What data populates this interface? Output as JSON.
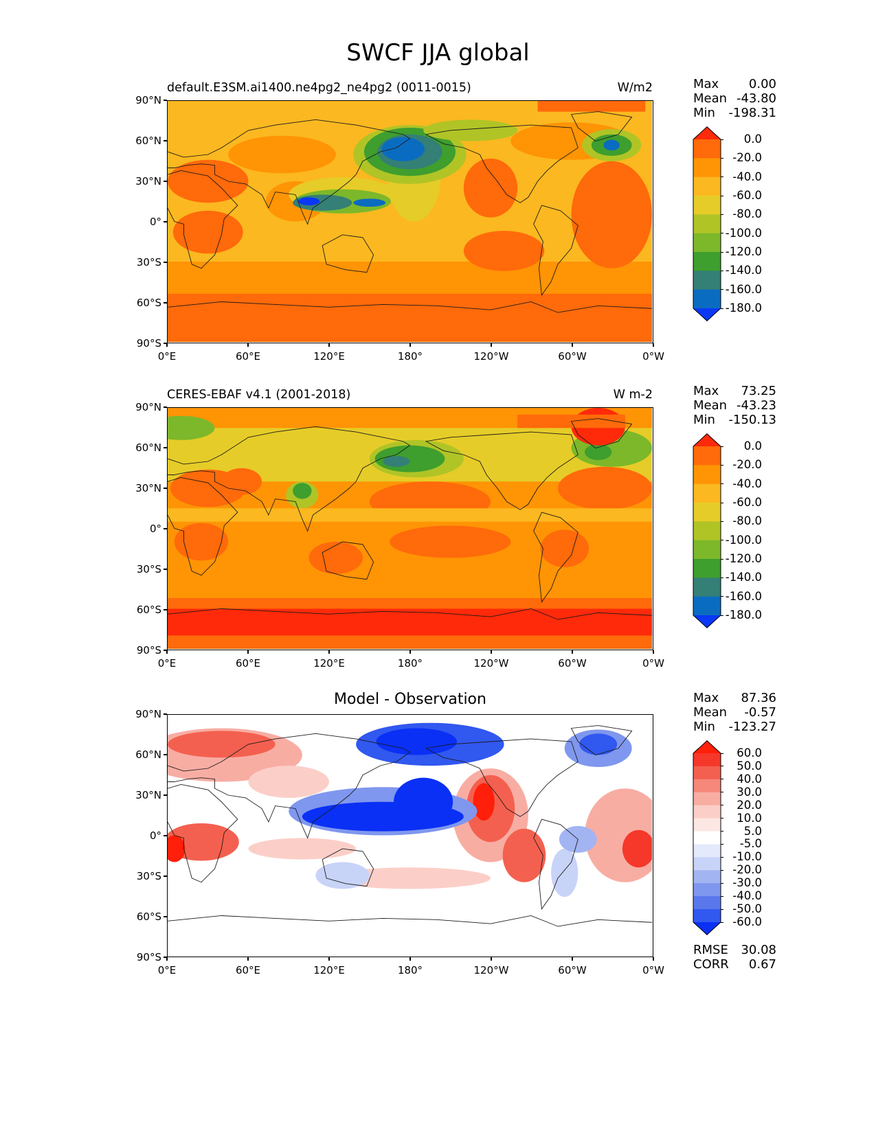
{
  "title": "SWCF JJA global",
  "axis_labels": {
    "lat": [
      "90°N",
      "60°N",
      "30°N",
      "0°",
      "30°S",
      "60°S",
      "90°S"
    ],
    "lon": [
      "0°E",
      "60°E",
      "120°E",
      "180°",
      "120°W",
      "60°W",
      "0°W"
    ]
  },
  "panels": [
    {
      "id": "model",
      "title_left": "default.E3SM.ai1400.ne4pg2_ne4pg2 (0011-0015)",
      "title_right": "W/m2",
      "title_center": "",
      "stats": [
        {
          "label": "Max",
          "value": "0.00"
        },
        {
          "label": "Mean",
          "value": "-43.80"
        },
        {
          "label": "Min",
          "value": "-198.31"
        }
      ],
      "colorbar": {
        "labels": [
          "0.0",
          "-20.0",
          "-40.0",
          "-60.0",
          "-80.0",
          "-100.0",
          "-120.0",
          "-140.0",
          "-160.0",
          "-180.0"
        ],
        "colors": [
          "#ff2a0a",
          "#ff6a0a",
          "#ff9405",
          "#fbb820",
          "#e6cc28",
          "#b0c426",
          "#7cb82a",
          "#3e9e2e",
          "#347f76",
          "#0a6cc0",
          "#0a38f5"
        ]
      },
      "extra_stats": []
    },
    {
      "id": "obs",
      "title_left": "CERES-EBAF v4.1 (2001-2018)",
      "title_right": "W m-2",
      "title_center": "",
      "stats": [
        {
          "label": "Max",
          "value": "73.25"
        },
        {
          "label": "Mean",
          "value": "-43.23"
        },
        {
          "label": "Min",
          "value": "-150.13"
        }
      ],
      "colorbar": {
        "labels": [
          "0.0",
          "-20.0",
          "-40.0",
          "-60.0",
          "-80.0",
          "-100.0",
          "-120.0",
          "-140.0",
          "-160.0",
          "-180.0"
        ],
        "colors": [
          "#ff2a0a",
          "#ff6a0a",
          "#ff9405",
          "#fbb820",
          "#e6cc28",
          "#b0c426",
          "#7cb82a",
          "#3e9e2e",
          "#347f76",
          "#0a6cc0",
          "#0a38f5"
        ]
      },
      "extra_stats": []
    },
    {
      "id": "diff",
      "title_left": "",
      "title_right": "",
      "title_center": "Model - Observation",
      "stats": [
        {
          "label": "Max",
          "value": "87.36"
        },
        {
          "label": "Mean",
          "value": "-0.57"
        },
        {
          "label": "Min",
          "value": "-123.27"
        }
      ],
      "colorbar": {
        "labels": [
          "60.0",
          "50.0",
          "40.0",
          "30.0",
          "20.0",
          "10.0",
          "5.0",
          "-5.0",
          "-10.0",
          "-20.0",
          "-30.0",
          "-40.0",
          "-50.0",
          "-60.0"
        ],
        "colors": [
          "#ff1f0a",
          "#f5382a",
          "#f4604f",
          "#f5887a",
          "#f8ada3",
          "#fbcfc8",
          "#fde7e3",
          "#ffffff",
          "#e4e9fb",
          "#c8d3f8",
          "#a3b4f2",
          "#7f97ee",
          "#5a78ec",
          "#3158ef",
          "#0a30f5"
        ]
      },
      "extra_stats": [
        {
          "label": "RMSE",
          "value": "30.08"
        },
        {
          "label": "CORR",
          "value": "0.67"
        }
      ]
    }
  ]
}
